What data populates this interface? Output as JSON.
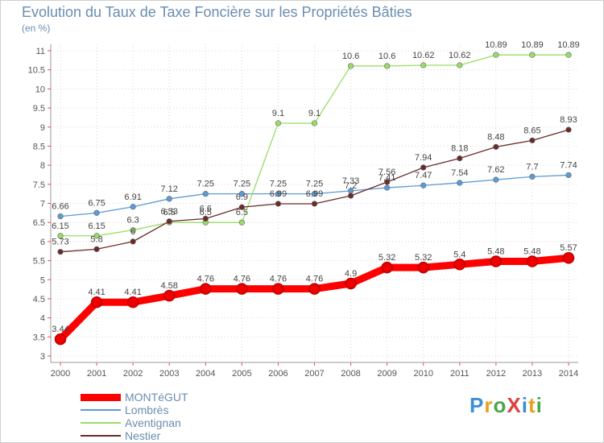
{
  "title": "Evolution du Taux de Taxe Foncière sur les Propriétés Bâties",
  "subtitle": "(en %)",
  "brand": "ProXiti",
  "chart_data": {
    "type": "line",
    "title": "Evolution du Taux de Taxe Foncière sur les Propriétés Bâties",
    "ylabel": "(en %)",
    "xlabel": "",
    "x": [
      "2000",
      "2001",
      "2002",
      "2003",
      "2004",
      "2005",
      "2006",
      "2007",
      "2008",
      "2009",
      "2010",
      "2011",
      "2012",
      "2013",
      "2014"
    ],
    "ylim": [
      3,
      11
    ],
    "y_ticks": [
      "3",
      "3.5",
      "4",
      "4.5",
      "5",
      "5.5",
      "6",
      "6.5",
      "7",
      "7.5",
      "8",
      "8.5",
      "9",
      "9.5",
      "10",
      "10.5",
      "11"
    ],
    "legend_position": "bottom-left",
    "series": [
      {
        "name": "MONTéGUT",
        "color": "#ff0000",
        "values": [
          3.44,
          4.41,
          4.41,
          4.58,
          4.76,
          4.76,
          4.76,
          4.76,
          4.9,
          5.32,
          5.32,
          5.4,
          5.48,
          5.48,
          5.57
        ],
        "labels": [
          "3.44",
          "4.41",
          "4.41",
          "4.58",
          "4.76",
          "4.76",
          "4.76",
          "4.76",
          "4.9",
          "5.32",
          "5.32",
          "5.4",
          "5.48",
          "5.48",
          "5.57"
        ]
      },
      {
        "name": "Lombrès",
        "color": "#5b9bd5",
        "values": [
          6.66,
          6.75,
          6.91,
          7.12,
          7.25,
          7.25,
          7.25,
          7.25,
          7.33,
          7.41,
          7.47,
          7.54,
          7.62,
          7.7,
          7.74
        ],
        "labels": [
          "6.66",
          "6.75",
          "6.91",
          "7.12",
          "7.25",
          "7.25",
          "7.25",
          "7.25",
          "7.33",
          "7.41",
          "7.47",
          "7.54",
          "7.62",
          "7.7",
          "7.74"
        ]
      },
      {
        "name": "Aventignan",
        "color": "#99dd66",
        "values": [
          6.15,
          6.15,
          6.3,
          6.5,
          6.5,
          6.5,
          9.1,
          9.1,
          10.6,
          10.6,
          10.62,
          10.62,
          10.89,
          10.89,
          10.89
        ],
        "labels": [
          "6.15",
          "6.15",
          "6.3",
          "6.5",
          "6.5",
          "6.5",
          "9.1",
          "9.1",
          "10.6",
          "10.6",
          "10.62",
          "10.62",
          "10.89",
          "10.89",
          "10.89"
        ]
      },
      {
        "name": "Nestier",
        "color": "#6b2a2a",
        "values": [
          5.73,
          5.8,
          6.0,
          6.53,
          6.6,
          6.9,
          6.99,
          6.99,
          7.2,
          7.56,
          7.94,
          8.18,
          8.48,
          8.65,
          8.93
        ],
        "labels": [
          "5.73",
          "5.8",
          "6",
          "6.53",
          "6.6",
          "6.9",
          "6.99",
          "6.99",
          "7.2",
          "7.56",
          "7.94",
          "8.18",
          "8.48",
          "8.65",
          "8.93"
        ]
      }
    ]
  }
}
